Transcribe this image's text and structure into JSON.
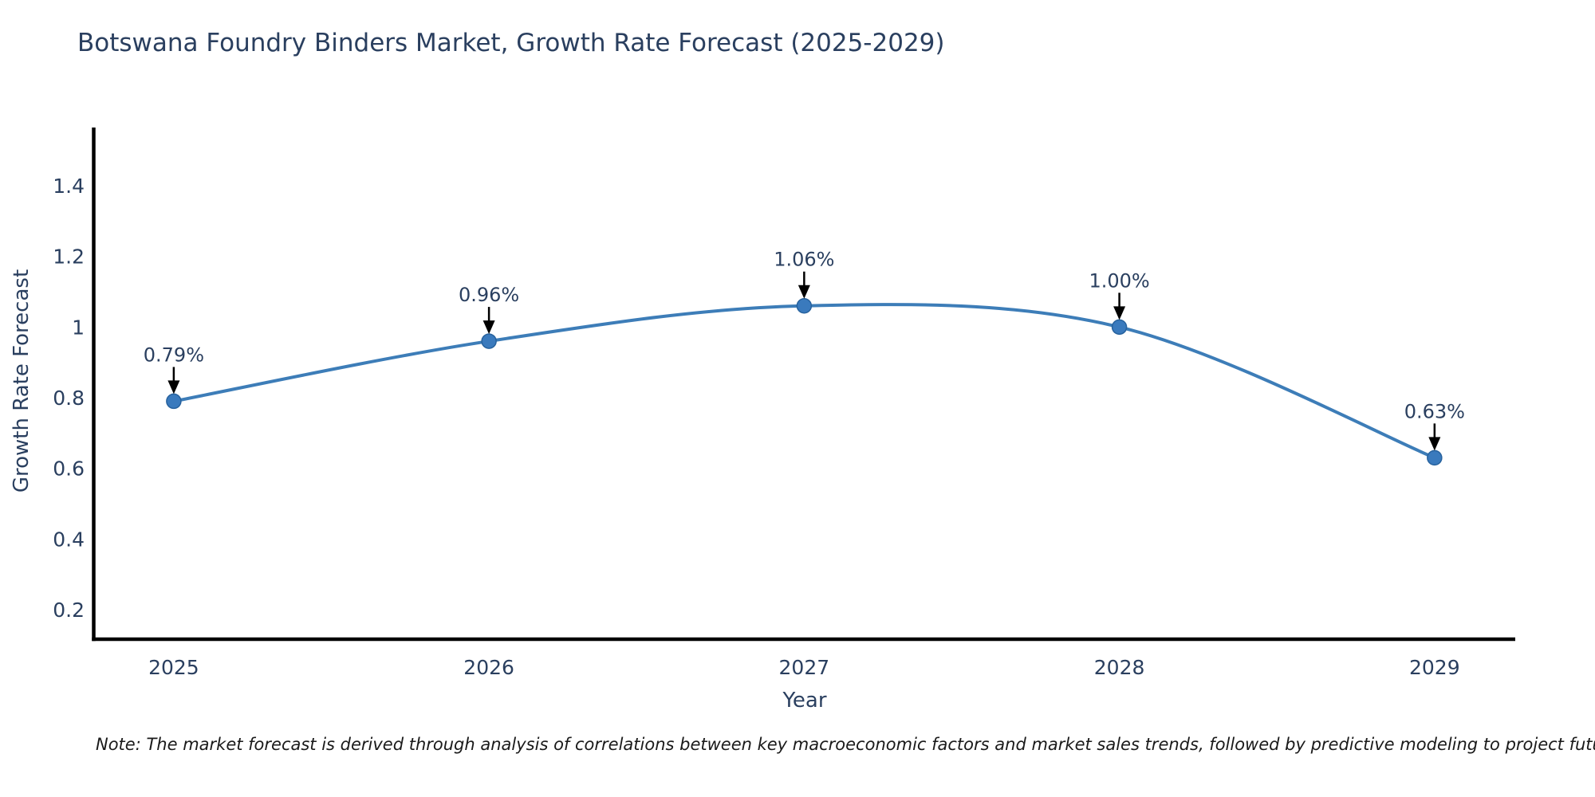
{
  "title": "Botswana Foundry Binders Market, Growth Rate Forecast (2025-2029)",
  "note": "Note: The market forecast is derived through analysis of correlations between key macroeconomic factors and market sales trends, followed by predictive modeling to project future sales",
  "chart_data": {
    "type": "line",
    "title": "Botswana Foundry Binders Market, Growth Rate Forecast (2025-2029)",
    "xlabel": "Year",
    "ylabel": "Growth Rate Forecast",
    "x": [
      2025,
      2026,
      2027,
      2028,
      2029
    ],
    "xticklabels": [
      "2025",
      "2026",
      "2027",
      "2028",
      "2029"
    ],
    "series": [
      {
        "name": "Growth Rate Forecast",
        "values": [
          0.79,
          0.96,
          1.06,
          1.0,
          0.63
        ]
      }
    ],
    "point_labels": [
      "0.79%",
      "0.96%",
      "1.06%",
      "1.00%",
      "0.63%"
    ],
    "yticks": {
      "values": [
        0.2,
        0.4,
        0.6,
        0.8,
        1.0,
        1.2,
        1.4
      ],
      "labels": [
        "0.2",
        "0.4",
        "0.6",
        "0.8",
        "1",
        "1.2",
        "1.4"
      ]
    },
    "xlim": [
      2024.746,
      2029.256
    ],
    "ylim": [
      0.1165,
      1.5647
    ],
    "grid": false,
    "legend": "none",
    "line_shape": "spline",
    "colors": {
      "line": "#3d7db8",
      "marker_fill": "#3a7abd",
      "marker_stroke": "#27629e",
      "axis": "#000000",
      "tick_text": "#2a3f5f",
      "annotation_text": "#2a3f5f",
      "annotation_arrow": "#000000",
      "title_text": "#2a3f5f",
      "background": "#ffffff"
    }
  }
}
